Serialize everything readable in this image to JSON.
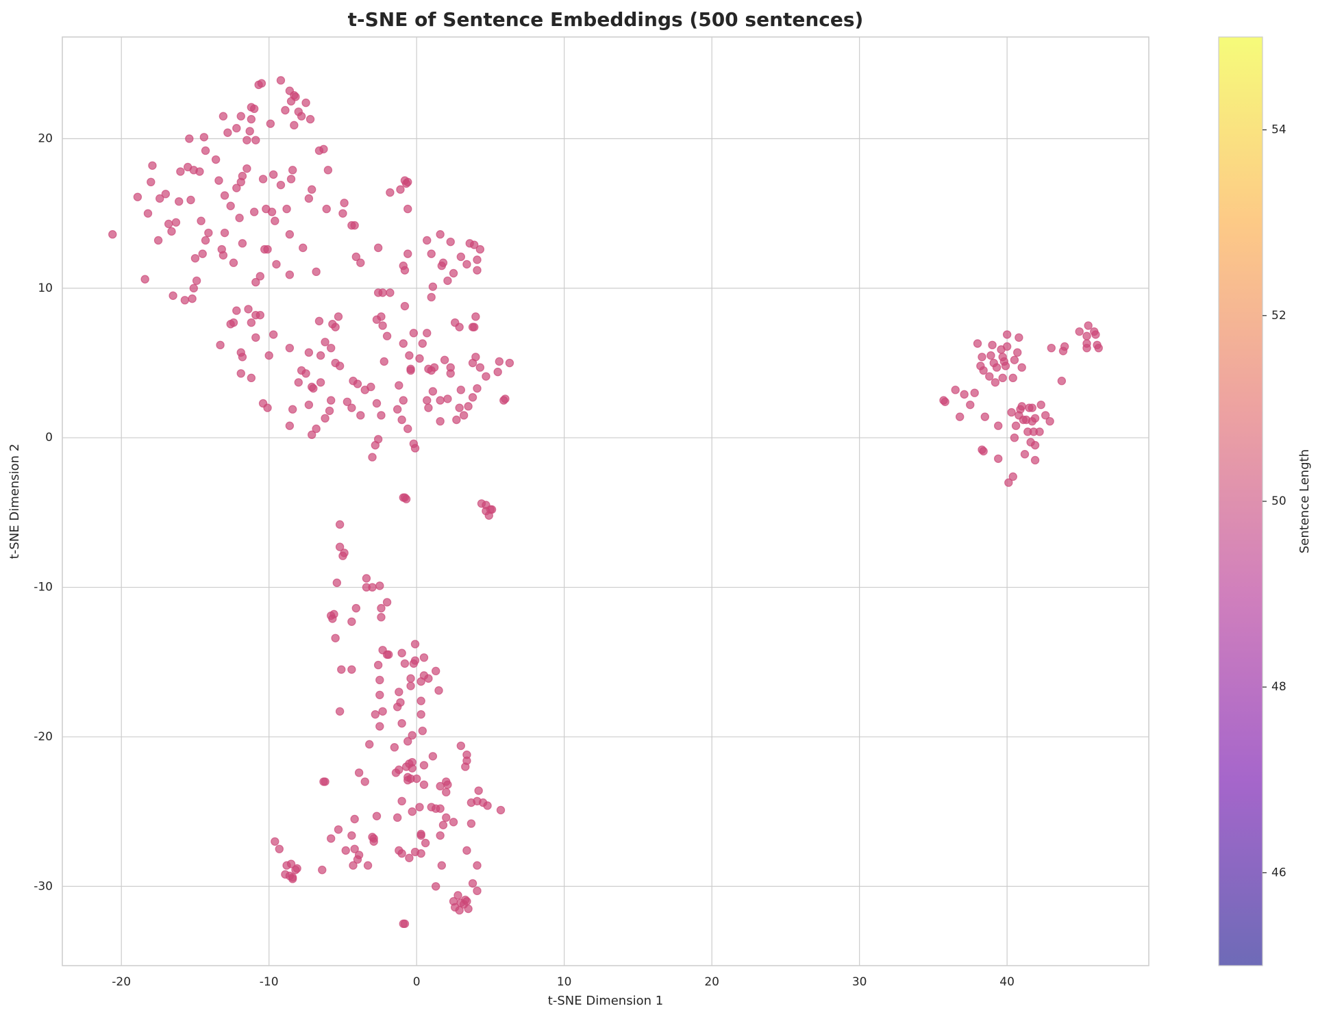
{
  "chart_data": {
    "type": "scatter",
    "title": "t-SNE of Sentence Embeddings (500 sentences)",
    "xlabel": "t-SNE Dimension 1",
    "ylabel": "t-SNE Dimension 2",
    "colorbar_label": "Sentence Length",
    "color": "#cc4778",
    "alpha": 0.7,
    "grid": true,
    "xlim": [
      -24,
      49.6
    ],
    "ylim": [
      -35.3,
      26.8
    ],
    "xticks": [
      -20,
      -10,
      0,
      10,
      20,
      30,
      40
    ],
    "yticks": [
      -30,
      -20,
      -10,
      0,
      10,
      20
    ],
    "clim": [
      45,
      55
    ],
    "cticks": [
      46,
      48,
      50,
      52,
      54
    ],
    "x": [
      -20.6,
      -18.9,
      -18.4,
      -18.2,
      -17.9,
      -18,
      -17.5,
      -17.4,
      -17,
      -16.8,
      -16.6,
      -16.5,
      -16.3,
      -16.1,
      -16,
      -15.7,
      -15.5,
      -15.4,
      -15.3,
      -15.2,
      -15.1,
      -15,
      -14.9,
      -14.7,
      -14.6,
      -14.5,
      -14.3,
      -14.3,
      -14.1,
      -14.4,
      -13.6,
      -13.4,
      -13.2,
      -13.1,
      -13,
      -13,
      -12.8,
      -12.6,
      -12.4,
      -12.2,
      -12,
      -11.9,
      -11.9,
      -11.8,
      -11.8,
      -11.5,
      -11.5,
      -11.3,
      -11.2,
      -11.2,
      -11,
      -11,
      -10.9,
      -10.9,
      -10.7,
      -10.5,
      -10.6,
      -10.4,
      -10.3,
      -10.2,
      -10.1,
      -9.9,
      -9.8,
      -9.7,
      -9.5,
      -9.6,
      -9.2,
      -8.9,
      -8.8,
      -8.6,
      -8.6,
      -8.6,
      -8.5,
      -8.4,
      -8.3,
      -8.2,
      -8.3,
      -8.5,
      -8,
      -7.8,
      -7.5,
      -7.2,
      -7.1,
      -7.3,
      -6.8,
      -6.6,
      -6.3,
      -6.1,
      -6,
      -7.7,
      -12.2,
      -15.1,
      -13.1,
      -13.3,
      -12.6,
      -12.4,
      -12.2,
      -11.9,
      -11.8,
      -11.9,
      -11.4,
      -11.2,
      -11.2,
      -10.9,
      -10.9,
      -10.6,
      -10.4,
      -10,
      -10.1,
      -9.7,
      -8.6,
      -8.6,
      -8.4,
      -8,
      -7.8,
      -7.5,
      -7.3,
      -7.3,
      -7.1,
      -7,
      -7.1,
      -6.8,
      -6.6,
      -6.5,
      -6.5,
      -6.2,
      -6.2,
      -5.9,
      -5.8,
      -5.7,
      -5.5,
      -5.5,
      -5.3,
      -5.2,
      -5.8,
      -4.7,
      -4.4,
      -4.3,
      -4,
      -3.8,
      -3.5,
      -3.1,
      -2.8,
      -3,
      -2.6,
      -2.7,
      -2.4,
      -2.2,
      -2,
      -2.3,
      -2.7,
      -2.4,
      -2.6,
      -2.3,
      -1.8,
      -2.6,
      -1.2,
      -0.9,
      -1,
      -0.9,
      -0.8,
      -0.9,
      -0.8,
      -0.6,
      -0.5,
      -0.4,
      -0.6,
      -0.2,
      -0.1,
      0.2,
      0.4,
      0.7,
      0.8,
      0.7,
      0.8,
      1.1,
      1.2,
      1,
      1,
      1.1,
      0.7,
      1,
      1.6,
      1.7,
      1.8,
      1.9,
      1.6,
      1.6,
      2.1,
      2.3,
      2.3,
      2.5,
      2.3,
      2.1,
      2.6,
      2.9,
      2.7,
      2.9,
      3,
      3.2,
      3.5,
      3.4,
      3,
      3.6,
      3.9,
      4.1,
      4.1,
      4.3,
      3.8,
      3.9,
      4,
      3.8,
      4,
      4.3,
      4.1,
      3.8,
      4.7,
      5.5,
      5.6,
      6,
      5.9,
      6.3,
      -1.1,
      -1.8,
      -0.7,
      -0.6,
      -0.8,
      -0.6,
      -4.9,
      -5,
      -4.4,
      -4.2,
      -3.8,
      -4.1,
      -9.2,
      -0.2,
      -0.4,
      -1.3,
      -0.9,
      -0.7,
      -0.8,
      4.4,
      4.7,
      5,
      5.1,
      4.9,
      4.7,
      -5.2,
      -5.2,
      -4.9,
      -5,
      -5.4,
      -3.4,
      -3.4,
      -3,
      -2.5,
      -2,
      -2.4,
      -2.4,
      -4.1,
      -4.4,
      -5.6,
      -5.8,
      -5.7,
      -5.5,
      -2.3,
      -2,
      -1.9,
      -1,
      -0.1,
      0.5,
      -0.1,
      -0.2,
      -0.8,
      -2.6,
      -5.1,
      -4.4,
      -2.5,
      -0.4,
      0.3,
      0.5,
      0.8,
      1.3,
      1.5,
      -0.4,
      -2.5,
      -1.2,
      -1.1,
      0.3,
      -1.3,
      -2.3,
      -2.8,
      0.3,
      -1,
      -2.5,
      0.4,
      -0.3,
      -0.6,
      -5.2,
      -3.2,
      -1.5,
      -0.3,
      -0.5,
      -0.3,
      0.5,
      1.1,
      -0.7,
      -1.2,
      -1.4,
      -0.6,
      -0.4,
      -0.6,
      0,
      -3.9,
      -3.5,
      -6.3,
      -6.2,
      2,
      2.1,
      1.6,
      0.5,
      2,
      3,
      3.4,
      3.4,
      3.3,
      4.2,
      4.1,
      4.5,
      3.7,
      4.8,
      5.7,
      1,
      1.3,
      1.6,
      0.2,
      -0.3,
      -1,
      -1.3,
      -2.7,
      -4.2,
      -5.3,
      -5.8,
      -4.4,
      -3,
      -2.9,
      -2.9,
      0.3,
      0.3,
      0.6,
      1.6,
      1.8,
      2,
      2.5,
      3.7,
      -9.6,
      -9.3,
      -4.8,
      -4.2,
      -3.9,
      -4,
      -4.3,
      -3.3,
      -1.2,
      -1,
      -0.5,
      -0.1,
      0.3,
      1.7,
      3.4,
      4.1,
      -8.8,
      -8.5,
      -8.1,
      -8.2,
      -8.9,
      -8.6,
      -8.4,
      -8.4,
      -6.4,
      1.3,
      2.8,
      3,
      3.3,
      3.2,
      3.4,
      2.5,
      2.6,
      2.9,
      3.5,
      3.8,
      4.1,
      -0.9,
      -0.8,
      35.7,
      35.8,
      36.5,
      36.8,
      37.1,
      37.5,
      37.8,
      38,
      38.2,
      38.3,
      38.4,
      38.3,
      38.4,
      38.5,
      38.8,
      38.9,
      39,
      39.1,
      39.2,
      39.3,
      39.4,
      39.4,
      39.6,
      39.7,
      39.8,
      39.7,
      39.9,
      40,
      40,
      40.1,
      40.3,
      40.4,
      40.4,
      40.5,
      40.5,
      40.6,
      40.7,
      40.8,
      40.8,
      40.9,
      41,
      41,
      41.1,
      41.2,
      41.3,
      41.4,
      41.5,
      41.6,
      41.7,
      41.7,
      41.8,
      41.9,
      41.9,
      41.9,
      42.2,
      42.3,
      42.6,
      42.9,
      43,
      43.7,
      43.8,
      43.9,
      44.9,
      45.4,
      45.4,
      45.4,
      45.5,
      45.9,
      46,
      46.1,
      46.2
    ],
    "values": [
      13.6,
      16.1,
      10.6,
      15,
      18.2,
      17.1,
      13.2,
      16,
      16.3,
      14.3,
      13.8,
      9.5,
      14.4,
      15.8,
      17.8,
      9.2,
      18.1,
      20,
      15.9,
      9.3,
      10,
      12,
      10.5,
      17.8,
      14.5,
      12.3,
      19.2,
      13.2,
      13.7,
      20.1,
      18.6,
      17.2,
      12.6,
      12.2,
      16.2,
      13.7,
      20.4,
      15.5,
      11.7,
      20.7,
      14.7,
      21.5,
      17.1,
      17.5,
      13,
      19.9,
      18,
      20.5,
      22.1,
      21.3,
      15.1,
      22,
      10.4,
      19.9,
      23.6,
      23.7,
      10.8,
      17.3,
      12.6,
      15.3,
      12.6,
      21,
      15.1,
      17.6,
      11.6,
      14.5,
      23.9,
      21.9,
      15.3,
      13.6,
      10.9,
      23.2,
      22.5,
      17.9,
      22.9,
      22.8,
      20.9,
      17.3,
      21.8,
      21.5,
      22.4,
      21.3,
      16.6,
      16,
      11.1,
      19.2,
      19.3,
      15.3,
      17.9,
      12.7,
      16.7,
      17.9,
      21.5,
      6.2,
      7.6,
      7.7,
      8.5,
      5.7,
      5.4,
      4.3,
      8.6,
      7.7,
      4,
      8.2,
      6.7,
      8.2,
      2.3,
      5.5,
      2,
      6.9,
      6,
      0.8,
      1.9,
      3.7,
      4.5,
      4.3,
      5.7,
      2.2,
      3.4,
      3.3,
      0.2,
      0.6,
      7.8,
      5.5,
      3.7,
      6.4,
      1.3,
      1.8,
      6,
      7.6,
      7.4,
      5,
      8.1,
      4.8,
      2.5,
      2.4,
      2,
      3.8,
      3.6,
      1.5,
      3.2,
      3.4,
      -0.5,
      -1.3,
      -0.1,
      2.3,
      1.5,
      5.1,
      6.8,
      7.5,
      7.9,
      8.1,
      9.7,
      9.7,
      9.7,
      12.7,
      3.5,
      2.5,
      1.2,
      6.3,
      8.8,
      11.5,
      11.2,
      12.3,
      5.5,
      4.6,
      0.6,
      -0.4,
      -0.7,
      5.3,
      6.3,
      7,
      4.6,
      2.5,
      2,
      3.1,
      4.7,
      4.5,
      9.4,
      10.1,
      13.2,
      12.3,
      13.6,
      11.5,
      11.7,
      5.2,
      2.5,
      1.1,
      2.6,
      4.7,
      4.3,
      11,
      13.1,
      10.5,
      7.7,
      7.4,
      1.2,
      2,
      3.2,
      1.5,
      2.1,
      11.6,
      12.1,
      13,
      12.9,
      11.2,
      11.9,
      12.6,
      7.4,
      7.4,
      8.1,
      5,
      5.4,
      4.7,
      3.3,
      2.7,
      4.1,
      4.4,
      5.1,
      2.6,
      2.5,
      5,
      16.6,
      16.4,
      17,
      17.1,
      17.2,
      15.3,
      15.7,
      15,
      14.2,
      14.2,
      11.7,
      12.1,
      16.9,
      7,
      4.5,
      1.9,
      -4,
      -4.1,
      -4,
      -4.4,
      -4.5,
      -4.8,
      -4.8,
      -5.2,
      -4.9,
      -5.8,
      -7.3,
      -7.7,
      -7.9,
      -9.7,
      -9.4,
      -10,
      -10,
      -9.9,
      -11,
      -11.4,
      -12,
      -11.4,
      -12.3,
      -11.8,
      -11.9,
      -12.1,
      -13.4,
      -14.2,
      -14.5,
      -14.5,
      -14.4,
      -13.8,
      -14.7,
      -14.9,
      -15.1,
      -15.1,
      -15.2,
      -15.5,
      -15.5,
      -16.2,
      -16.1,
      -16.3,
      -15.9,
      -16.1,
      -15.6,
      -16.9,
      -16.6,
      -17.2,
      -17,
      -17.7,
      -17.6,
      -18,
      -18.3,
      -18.5,
      -18.5,
      -19.1,
      -19.3,
      -19.6,
      -19.9,
      -20.3,
      -18.3,
      -20.5,
      -20.7,
      -21.7,
      -21.8,
      -22.1,
      -21.9,
      -21.3,
      -22,
      -22.2,
      -22.4,
      -22.7,
      -22.8,
      -22.9,
      -22.8,
      -22.4,
      -23,
      -23,
      -23,
      -23,
      -23.2,
      -23.3,
      -23.2,
      -23.7,
      -20.6,
      -21.2,
      -21.6,
      -22,
      -23.6,
      -24.3,
      -24.4,
      -24.4,
      -24.6,
      -24.9,
      -24.7,
      -24.8,
      -24.8,
      -24.7,
      -25,
      -24.3,
      -25.4,
      -25.3,
      -25.5,
      -26.2,
      -26.8,
      -26.6,
      -26.7,
      -26.8,
      -27,
      -26.5,
      -26.6,
      -27.1,
      -26.6,
      -25.9,
      -25.4,
      -25.7,
      -25.8,
      -27,
      -27.5,
      -27.6,
      -27.5,
      -27.9,
      -28.2,
      -28.6,
      -28.6,
      -27.6,
      -27.8,
      -28.1,
      -27.7,
      -27.8,
      -28.6,
      -27.6,
      -28.6,
      -28.6,
      -28.5,
      -28.8,
      -28.9,
      -29.2,
      -29.3,
      -29.4,
      -29.5,
      -28.9,
      -30,
      -30.6,
      -31.1,
      -30.9,
      -31.2,
      -31,
      -31,
      -31.4,
      -31.6,
      -31.5,
      -29.8,
      -30.3,
      -32.5,
      -32.5,
      2.5,
      2.4,
      3.2,
      1.4,
      2.9,
      2.2,
      3,
      6.3,
      4.8,
      5.4,
      4.5,
      -0.8,
      -0.9,
      1.4,
      4.1,
      5.5,
      6.2,
      5,
      3.7,
      4.7,
      0.8,
      -1.4,
      5.9,
      5.4,
      5.1,
      4,
      4.8,
      6.1,
      6.9,
      -3,
      1.7,
      -2.6,
      4,
      5.2,
      0,
      0.8,
      5.7,
      6.7,
      1.5,
      1.9,
      2.1,
      4.7,
      1.2,
      -1.1,
      1.2,
      0.4,
      2,
      -0.3,
      2,
      1.1,
      0.4,
      1.3,
      -0.5,
      -1.5,
      0.4,
      2.2,
      1.5,
      1.1,
      6,
      3.8,
      5.8,
      6.1,
      7.1,
      6,
      6.3,
      6.8,
      7.5,
      7.1,
      6.9,
      6.2,
      6
    ]
  }
}
